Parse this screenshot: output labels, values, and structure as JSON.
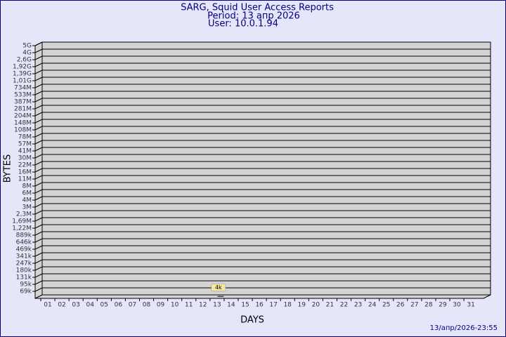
{
  "chart_data": {
    "type": "bar",
    "title": "SARG, Squid User Access Reports",
    "subtitle": "Period: 13 апр 2026",
    "user": "User: 10.0.1.94",
    "x_label": "DAYS",
    "y_label": "BYTES",
    "footer": "13/апр/2026-23:55",
    "categories": [
      "01",
      "02",
      "03",
      "04",
      "05",
      "06",
      "07",
      "08",
      "09",
      "10",
      "11",
      "12",
      "13",
      "14",
      "15",
      "16",
      "17",
      "18",
      "19",
      "20",
      "21",
      "22",
      "23",
      "24",
      "25",
      "26",
      "27",
      "28",
      "29",
      "30",
      "31"
    ],
    "values": [
      0,
      0,
      0,
      0,
      0,
      0,
      0,
      0,
      0,
      0,
      0,
      0,
      4000,
      0,
      0,
      0,
      0,
      0,
      0,
      0,
      0,
      0,
      0,
      0,
      0,
      0,
      0,
      0,
      0,
      0,
      0
    ],
    "value_labels": [
      null,
      null,
      null,
      null,
      null,
      null,
      null,
      null,
      null,
      null,
      null,
      null,
      "4k",
      null,
      null,
      null,
      null,
      null,
      null,
      null,
      null,
      null,
      null,
      null,
      null,
      null,
      null,
      null,
      null,
      null,
      null
    ],
    "color": "#f5e79e",
    "ylim": [
      0,
      5000000000
    ],
    "yticks": [
      {
        "value": 69000,
        "label": "69k"
      },
      {
        "value": 95000,
        "label": "95k"
      },
      {
        "value": 131000,
        "label": "131k"
      },
      {
        "value": 180000,
        "label": "180k"
      },
      {
        "value": 247000,
        "label": "247k"
      },
      {
        "value": 341000,
        "label": "341k"
      },
      {
        "value": 469000,
        "label": "469k"
      },
      {
        "value": 646000,
        "label": "646k"
      },
      {
        "value": 889000,
        "label": "889k"
      },
      {
        "value": 1220000,
        "label": "1,22M"
      },
      {
        "value": 1690000,
        "label": "1,69M"
      },
      {
        "value": 2300000,
        "label": "2,3M"
      },
      {
        "value": 3000000,
        "label": "3M"
      },
      {
        "value": 4000000,
        "label": "4M"
      },
      {
        "value": 6000000,
        "label": "6M"
      },
      {
        "value": 8000000,
        "label": "8M"
      },
      {
        "value": 11000000,
        "label": "11M"
      },
      {
        "value": 16000000,
        "label": "16M"
      },
      {
        "value": 22000000,
        "label": "22M"
      },
      {
        "value": 30000000,
        "label": "30M"
      },
      {
        "value": 41000000,
        "label": "41M"
      },
      {
        "value": 57000000,
        "label": "57M"
      },
      {
        "value": 78000000,
        "label": "78M"
      },
      {
        "value": 108000000,
        "label": "108M"
      },
      {
        "value": 148000000,
        "label": "148M"
      },
      {
        "value": 204000000,
        "label": "204M"
      },
      {
        "value": 281000000,
        "label": "281M"
      },
      {
        "value": 387000000,
        "label": "387M"
      },
      {
        "value": 533000000,
        "label": "533M"
      },
      {
        "value": 734000000,
        "label": "734M"
      },
      {
        "value": 1010000000,
        "label": "1,01G"
      },
      {
        "value": 1390000000,
        "label": "1,39G"
      },
      {
        "value": 1920000000,
        "label": "1,92G"
      },
      {
        "value": 2600000000,
        "label": "2,6G"
      },
      {
        "value": 4000000000,
        "label": "4G"
      },
      {
        "value": 5000000000,
        "label": "5G"
      }
    ],
    "grid": true
  }
}
